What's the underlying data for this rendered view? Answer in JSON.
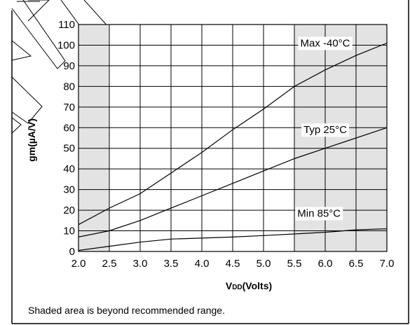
{
  "chart_data": {
    "type": "line",
    "xlabel_main": "V",
    "xlabel_sub": "DD",
    "xlabel_unit": "(Volts)",
    "ylabel": "gm(µA/V)",
    "xlim": [
      2.0,
      7.0
    ],
    "ylim": [
      0,
      110
    ],
    "x_ticks": [
      "2.0",
      "2.5",
      "3.0",
      "3.5",
      "4.0",
      "4.5",
      "5.0",
      "5.5",
      "6.0",
      "6.5",
      "7.0"
    ],
    "y_ticks": [
      "0",
      "10",
      "20",
      "30",
      "40",
      "50",
      "60",
      "70",
      "80",
      "90",
      "100",
      "110"
    ],
    "grid": true,
    "shaded_regions": [
      {
        "x_from": 2.0,
        "x_to": 2.5
      },
      {
        "x_from": 5.5,
        "x_to": 7.0
      }
    ],
    "shade_color": "#e3e3e3",
    "series": [
      {
        "name": "Max -40°C",
        "x": [
          2.0,
          2.5,
          3.0,
          3.5,
          4.0,
          4.5,
          5.0,
          5.5,
          6.0,
          6.5,
          7.0
        ],
        "y": [
          13,
          21,
          28,
          38,
          48,
          59,
          69,
          80,
          88,
          95,
          101
        ],
        "label_at": [
          6.0,
          101
        ]
      },
      {
        "name": "Typ 25°C",
        "x": [
          2.0,
          2.5,
          3.0,
          3.5,
          4.0,
          4.5,
          5.0,
          5.5,
          6.0,
          6.5,
          7.0
        ],
        "y": [
          7,
          10,
          15,
          21,
          27,
          33,
          39,
          45,
          50,
          55,
          60
        ],
        "label_at": [
          6.0,
          59
        ]
      },
      {
        "name": "Min 85°C",
        "x": [
          2.0,
          2.5,
          3.0,
          3.5,
          4.0,
          4.5,
          5.0,
          5.5,
          6.0,
          6.5,
          7.0
        ],
        "y": [
          0.5,
          2.5,
          4.5,
          6,
          6.5,
          7,
          7.7,
          8.5,
          9.3,
          10.5,
          11
        ],
        "label_at": [
          5.9,
          18.5
        ]
      }
    ],
    "footnote": "Shaded area is beyond recommended range."
  }
}
